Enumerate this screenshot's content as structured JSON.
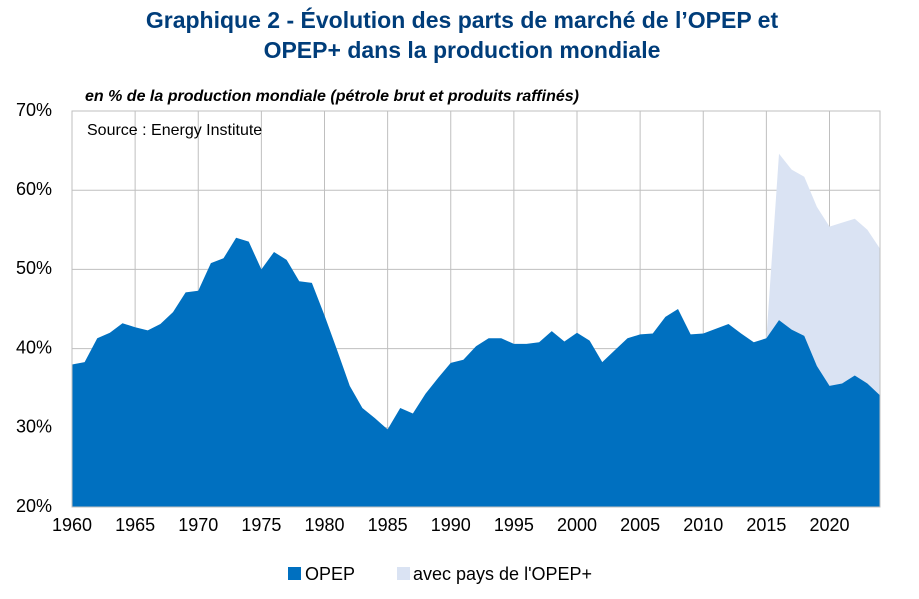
{
  "chart_data": {
    "type": "area",
    "title": [
      "Graphique 2 - Évolution des parts de marché de l’OPEP et",
      "OPEP+ dans la production mondiale"
    ],
    "subtitle": "en % de la production mondiale (pétrole brut et produits raffinés)",
    "annotation": "Source : Energy Institute",
    "x": [
      1960,
      1961,
      1962,
      1963,
      1964,
      1965,
      1966,
      1967,
      1968,
      1969,
      1970,
      1971,
      1972,
      1973,
      1974,
      1975,
      1976,
      1977,
      1978,
      1979,
      1980,
      1981,
      1982,
      1983,
      1984,
      1985,
      1986,
      1987,
      1988,
      1989,
      1990,
      1991,
      1992,
      1993,
      1994,
      1995,
      1996,
      1997,
      1998,
      1999,
      2000,
      2001,
      2002,
      2003,
      2004,
      2005,
      2006,
      2007,
      2008,
      2009,
      2010,
      2011,
      2012,
      2013,
      2014,
      2015,
      2016,
      2017,
      2018,
      2019,
      2020,
      2021,
      2022,
      2023,
      2024
    ],
    "series": [
      {
        "name": "avec pays de l'OPEP+",
        "color": "#dae3f3",
        "values": [
          null,
          null,
          null,
          null,
          null,
          null,
          null,
          null,
          null,
          null,
          null,
          null,
          null,
          null,
          null,
          null,
          null,
          null,
          null,
          null,
          null,
          null,
          null,
          null,
          null,
          null,
          null,
          null,
          null,
          null,
          null,
          null,
          null,
          null,
          null,
          null,
          null,
          null,
          null,
          null,
          null,
          null,
          null,
          null,
          null,
          null,
          null,
          null,
          null,
          null,
          null,
          null,
          null,
          null,
          null,
          41.3,
          64.6,
          62.6,
          61.7,
          57.9,
          55.4,
          55.9,
          56.4,
          55.0,
          52.6
        ]
      },
      {
        "name": "OPEP",
        "color": "#0070c0",
        "values": [
          38.0,
          38.3,
          41.3,
          42.0,
          43.2,
          42.7,
          42.3,
          43.1,
          44.6,
          47.1,
          47.3,
          50.8,
          51.4,
          54.0,
          53.5,
          50.0,
          52.2,
          51.2,
          48.5,
          48.3,
          44.2,
          39.8,
          35.3,
          32.5,
          31.2,
          29.8,
          32.5,
          31.8,
          34.3,
          36.3,
          38.2,
          38.6,
          40.3,
          41.3,
          41.3,
          40.6,
          40.6,
          40.8,
          42.2,
          40.9,
          42.0,
          41.0,
          38.3,
          39.8,
          41.3,
          41.8,
          41.9,
          44.0,
          45.0,
          41.8,
          41.9,
          42.5,
          43.1,
          41.9,
          40.8,
          41.3,
          43.6,
          42.4,
          41.6,
          37.8,
          35.3,
          35.6,
          36.6,
          35.6,
          34.1
        ]
      }
    ],
    "xlim": [
      1960,
      2024
    ],
    "xticks": [
      1960,
      1965,
      1970,
      1975,
      1980,
      1985,
      1990,
      1995,
      2000,
      2005,
      2010,
      2015,
      2020
    ],
    "ylim": [
      20,
      70
    ],
    "yticks": [
      {
        "value": 20,
        "label": "20%"
      },
      {
        "value": 30,
        "label": "30%"
      },
      {
        "value": 40,
        "label": "40%"
      },
      {
        "value": 50,
        "label": "50%"
      },
      {
        "value": 60,
        "label": "60%"
      },
      {
        "value": 70,
        "label": "70%"
      }
    ],
    "grid": true
  }
}
